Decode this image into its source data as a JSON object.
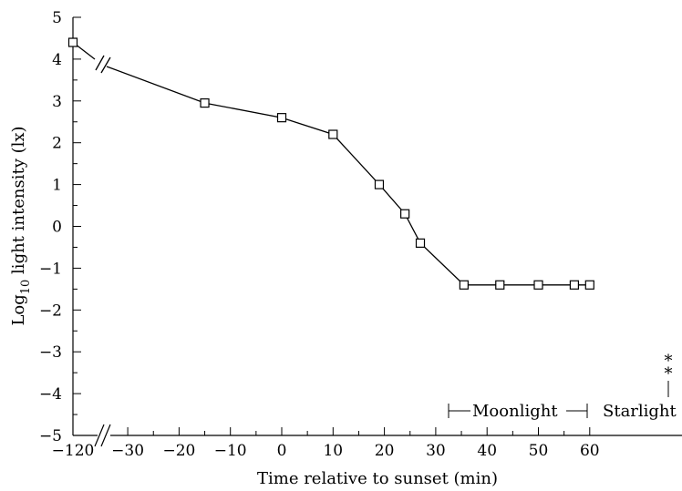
{
  "chart_data": {
    "type": "line",
    "xlabel": "Time relative to sunset (min)",
    "ylabel_prefix": "Log",
    "ylabel_sub": "10",
    "ylabel_suffix": " light intensity (lx)",
    "xlim": [
      -120,
      60
    ],
    "ylim": [
      -5,
      5
    ],
    "x_ticks": [
      -120,
      -30,
      -20,
      -10,
      0,
      10,
      20,
      30,
      40,
      50,
      60
    ],
    "x_tick_labels": [
      "−120",
      "−30",
      "−20",
      "−10",
      "0",
      "10",
      "20",
      "30",
      "40",
      "50",
      "60"
    ],
    "x_axis_break_between": [
      -120,
      -30
    ],
    "y_ticks": [
      -5,
      -4,
      -3,
      -2,
      -1,
      0,
      1,
      2,
      3,
      4,
      5
    ],
    "y_tick_labels": [
      "−5",
      "−4",
      "−3",
      "−2",
      "−1",
      "0",
      "1",
      "2",
      "3",
      "4",
      "5"
    ],
    "series": [
      {
        "x": [
          -120,
          -15,
          0,
          10,
          19,
          24,
          27,
          35.5,
          42.5,
          50,
          57,
          60
        ],
        "y": [
          4.4,
          2.95,
          2.6,
          2.2,
          1.0,
          0.3,
          -0.4,
          -1.4,
          -1.4,
          -1.4,
          -1.4,
          -1.4
        ]
      }
    ],
    "annotations": {
      "moonlight": "Moonlight",
      "starlight": "Starlight",
      "asterisks": "*\n*"
    },
    "grid": false,
    "legend": false
  }
}
